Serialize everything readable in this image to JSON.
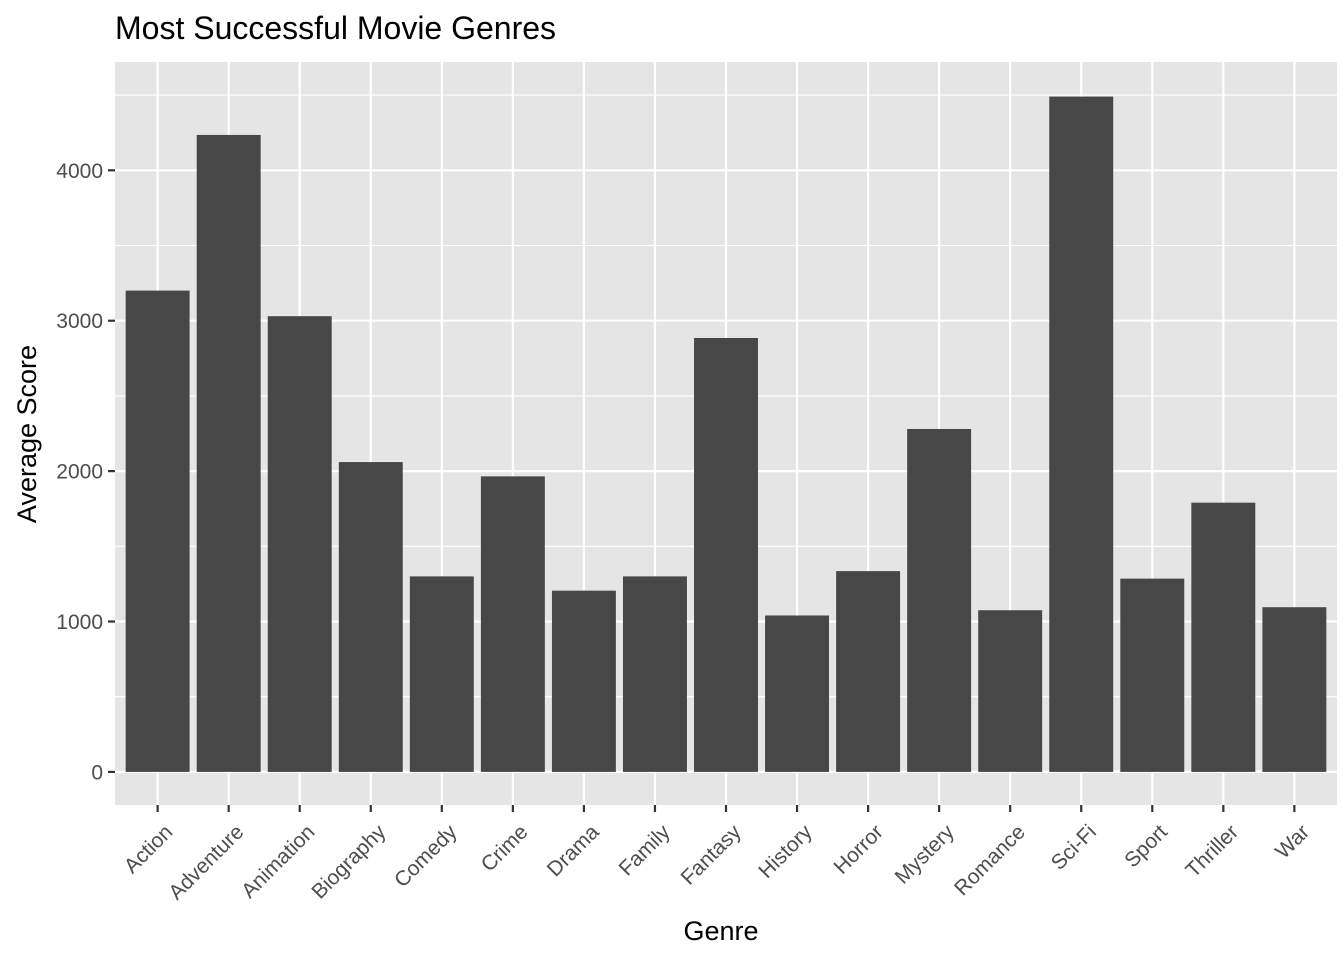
{
  "chart_data": {
    "type": "bar",
    "title": "Most Successful Movie Genres",
    "xlabel": "Genre",
    "ylabel": "Average Score",
    "categories": [
      "Action",
      "Adventure",
      "Animation",
      "Biography",
      "Comedy",
      "Crime",
      "Drama",
      "Family",
      "Fantasy",
      "History",
      "Horror",
      "Mystery",
      "Romance",
      "Sci-Fi",
      "Sport",
      "Thriller",
      "War"
    ],
    "values": [
      3200,
      4235,
      3030,
      2060,
      1300,
      1965,
      1205,
      1300,
      2885,
      1040,
      1335,
      2280,
      1075,
      4490,
      1285,
      1790,
      1095
    ],
    "ylim": [
      -220,
      4720
    ],
    "yticks": [
      0,
      1000,
      2000,
      3000,
      4000
    ],
    "ytick_labels": [
      "0",
      "1000",
      "2000",
      "3000",
      "4000"
    ],
    "grid": true,
    "legend": "none",
    "colors": {
      "bar": "#474747",
      "panel": "#e5e5e5",
      "grid": "#ffffff",
      "tick_text": "#4d4d4d",
      "tick_mark": "#333333"
    }
  }
}
